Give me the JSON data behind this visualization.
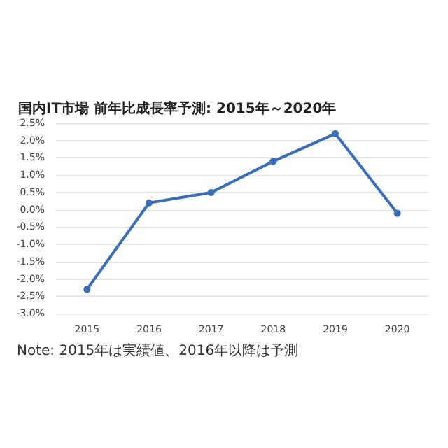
{
  "chart_data": {
    "type": "line",
    "title": "国内IT市場 前年比成長率予測: 2015年～2020年",
    "categories": [
      "2015",
      "2016",
      "2017",
      "2018",
      "2019",
      "2020"
    ],
    "series": [
      {
        "color": "#3a6fb7",
        "values": [
          -2.3,
          0.2,
          0.5,
          1.4,
          2.2,
          -0.1
        ]
      }
    ],
    "ylim": [
      -3,
      2.5
    ],
    "yticks": [
      {
        "value": -3,
        "label": "-3.0%"
      },
      {
        "value": -2.5,
        "label": "-2.5%"
      },
      {
        "value": -2,
        "label": "-2.0%"
      },
      {
        "value": -1.5,
        "label": "-1.5%"
      },
      {
        "value": -1,
        "label": "-1.0%"
      },
      {
        "value": -0.5,
        "label": "-0.5%"
      },
      {
        "value": 0,
        "label": "0.0%"
      },
      {
        "value": 0.5,
        "label": "0.5%"
      },
      {
        "value": 1,
        "label": "1.0%"
      },
      {
        "value": 1.5,
        "label": "1.5%"
      },
      {
        "value": 2,
        "label": "2.0%"
      },
      {
        "value": 2.5,
        "label": "2.5%"
      }
    ],
    "grid": "y",
    "marker": "circle",
    "line_style": "solid",
    "annotations": [
      "Note: 2015年は実績値、2016年以降は予測"
    ]
  }
}
